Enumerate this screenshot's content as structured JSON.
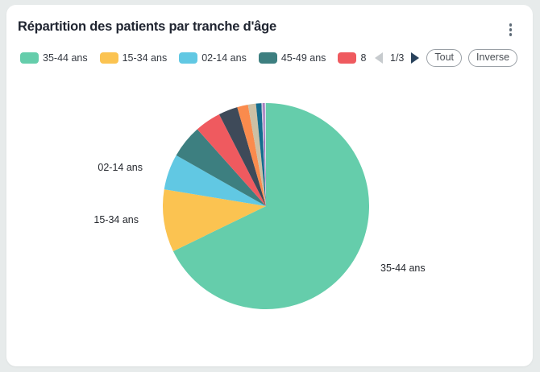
{
  "card": {
    "title": "Répartition des patients par tranche d'âge"
  },
  "legend": {
    "items": [
      {
        "label": "35-44 ans",
        "color": "#65CDAB",
        "truncated": false
      },
      {
        "label": "15-34 ans",
        "color": "#FBC351",
        "truncated": false
      },
      {
        "label": "02-14 ans",
        "color": "#61C8E3",
        "truncated": false
      },
      {
        "label": "45-49 ans",
        "color": "#3D7F80",
        "truncated": false
      },
      {
        "label": "8",
        "color": "#EF5A5F",
        "truncated": true
      }
    ],
    "page_indicator": "1/3",
    "all_button": "Tout",
    "inverse_button": "Inverse"
  },
  "chart_data": {
    "type": "pie",
    "title": "Répartition des patients par tranche d'âge",
    "unit": "%",
    "values_estimated": true,
    "legend_position": "top",
    "slices": [
      {
        "label": "35-44 ans",
        "value": 67.8,
        "color": "#65CDAB"
      },
      {
        "label": "15-34 ans",
        "value": 9.8,
        "color": "#FBC351"
      },
      {
        "label": "02-14 ans",
        "value": 5.6,
        "color": "#61C8E3"
      },
      {
        "label": "45-49 ans",
        "value": 5.2,
        "color": "#3D7F80"
      },
      {
        "label": "",
        "value": 4.1,
        "color": "#EF5A5F"
      },
      {
        "label": "",
        "value": 3.0,
        "color": "#3E4A59"
      },
      {
        "label": "",
        "value": 1.7,
        "color": "#FA8B4D"
      },
      {
        "label": "",
        "value": 1.25,
        "color": "#CCC0A5"
      },
      {
        "label": "",
        "value": 0.85,
        "color": "#136C8E"
      },
      {
        "label": "",
        "value": 0.25,
        "color": "#CFC8DC"
      },
      {
        "label": "",
        "value": 0.25,
        "color": "#9A60B4"
      },
      {
        "label": "",
        "value": 0.2,
        "color": "#D5E8EE"
      }
    ],
    "outer_labels": [
      {
        "text": "02-14 ans"
      },
      {
        "text": "15-34 ans"
      },
      {
        "text": "35-44 ans"
      }
    ]
  }
}
